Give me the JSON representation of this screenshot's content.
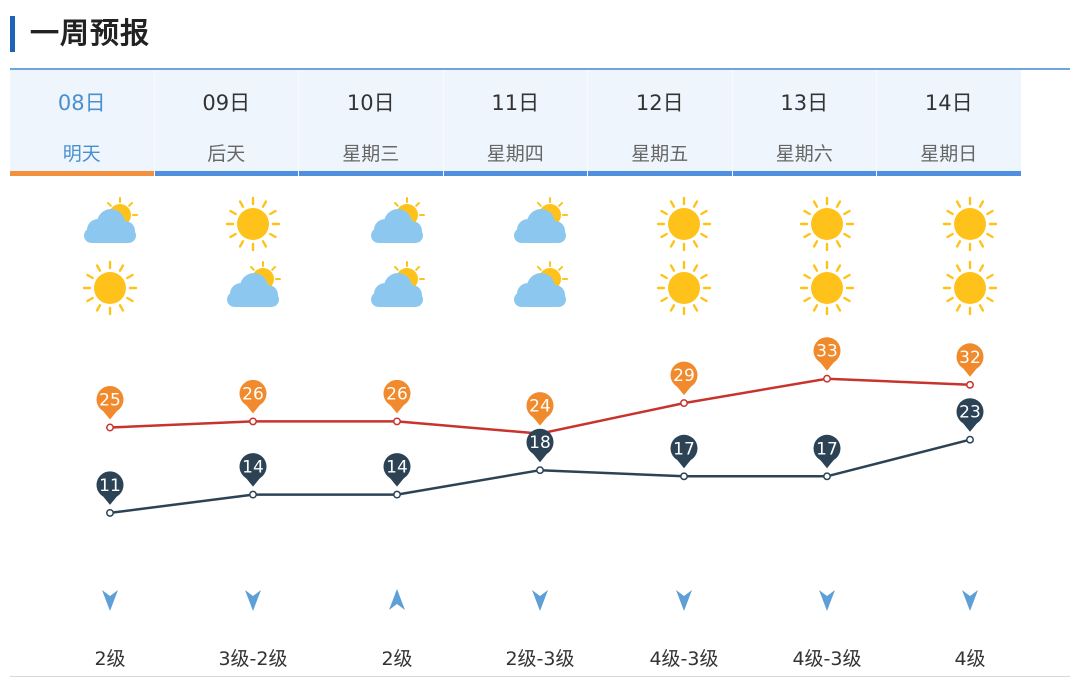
{
  "header": {
    "title": "一周预报"
  },
  "days": [
    {
      "date": "08日",
      "weekday": "明天",
      "selected": true,
      "icon_day": "partly-cloudy-icon",
      "icon_night": "sunny-icon",
      "high": 25,
      "low": 11,
      "wind_dir": "down",
      "wind": "2级"
    },
    {
      "date": "09日",
      "weekday": "后天",
      "selected": false,
      "icon_day": "sunny-icon",
      "icon_night": "partly-cloudy-icon",
      "high": 26,
      "low": 14,
      "wind_dir": "down",
      "wind": "3级-2级"
    },
    {
      "date": "10日",
      "weekday": "星期三",
      "selected": false,
      "icon_day": "partly-cloudy-icon",
      "icon_night": "partly-cloudy-icon",
      "high": 26,
      "low": 14,
      "wind_dir": "up",
      "wind": "2级"
    },
    {
      "date": "11日",
      "weekday": "星期四",
      "selected": false,
      "icon_day": "partly-cloudy-icon",
      "icon_night": "partly-cloudy-icon",
      "high": 24,
      "low": 18,
      "wind_dir": "down",
      "wind": "2级-3级"
    },
    {
      "date": "12日",
      "weekday": "星期五",
      "selected": false,
      "icon_day": "sunny-icon",
      "icon_night": "sunny-icon",
      "high": 29,
      "low": 17,
      "wind_dir": "down",
      "wind": "4级-3级"
    },
    {
      "date": "13日",
      "weekday": "星期六",
      "selected": false,
      "icon_day": "sunny-icon",
      "icon_night": "sunny-icon",
      "high": 33,
      "low": 17,
      "wind_dir": "down",
      "wind": "4级-3级"
    },
    {
      "date": "14日",
      "weekday": "星期日",
      "selected": false,
      "icon_day": "sunny-icon",
      "icon_night": "sunny-icon",
      "high": 32,
      "low": 23,
      "wind_dir": "down",
      "wind": "4级"
    }
  ],
  "colors": {
    "high_line": "#c8332c",
    "high_pin": "#f08a2c",
    "low_line": "#2c4356",
    "low_pin": "#2c4356",
    "selected_tab": "#f3923e",
    "tab_bar": "#4f8fde",
    "sun": "#ffc21a",
    "cloud": "#8cc7ef"
  }
}
